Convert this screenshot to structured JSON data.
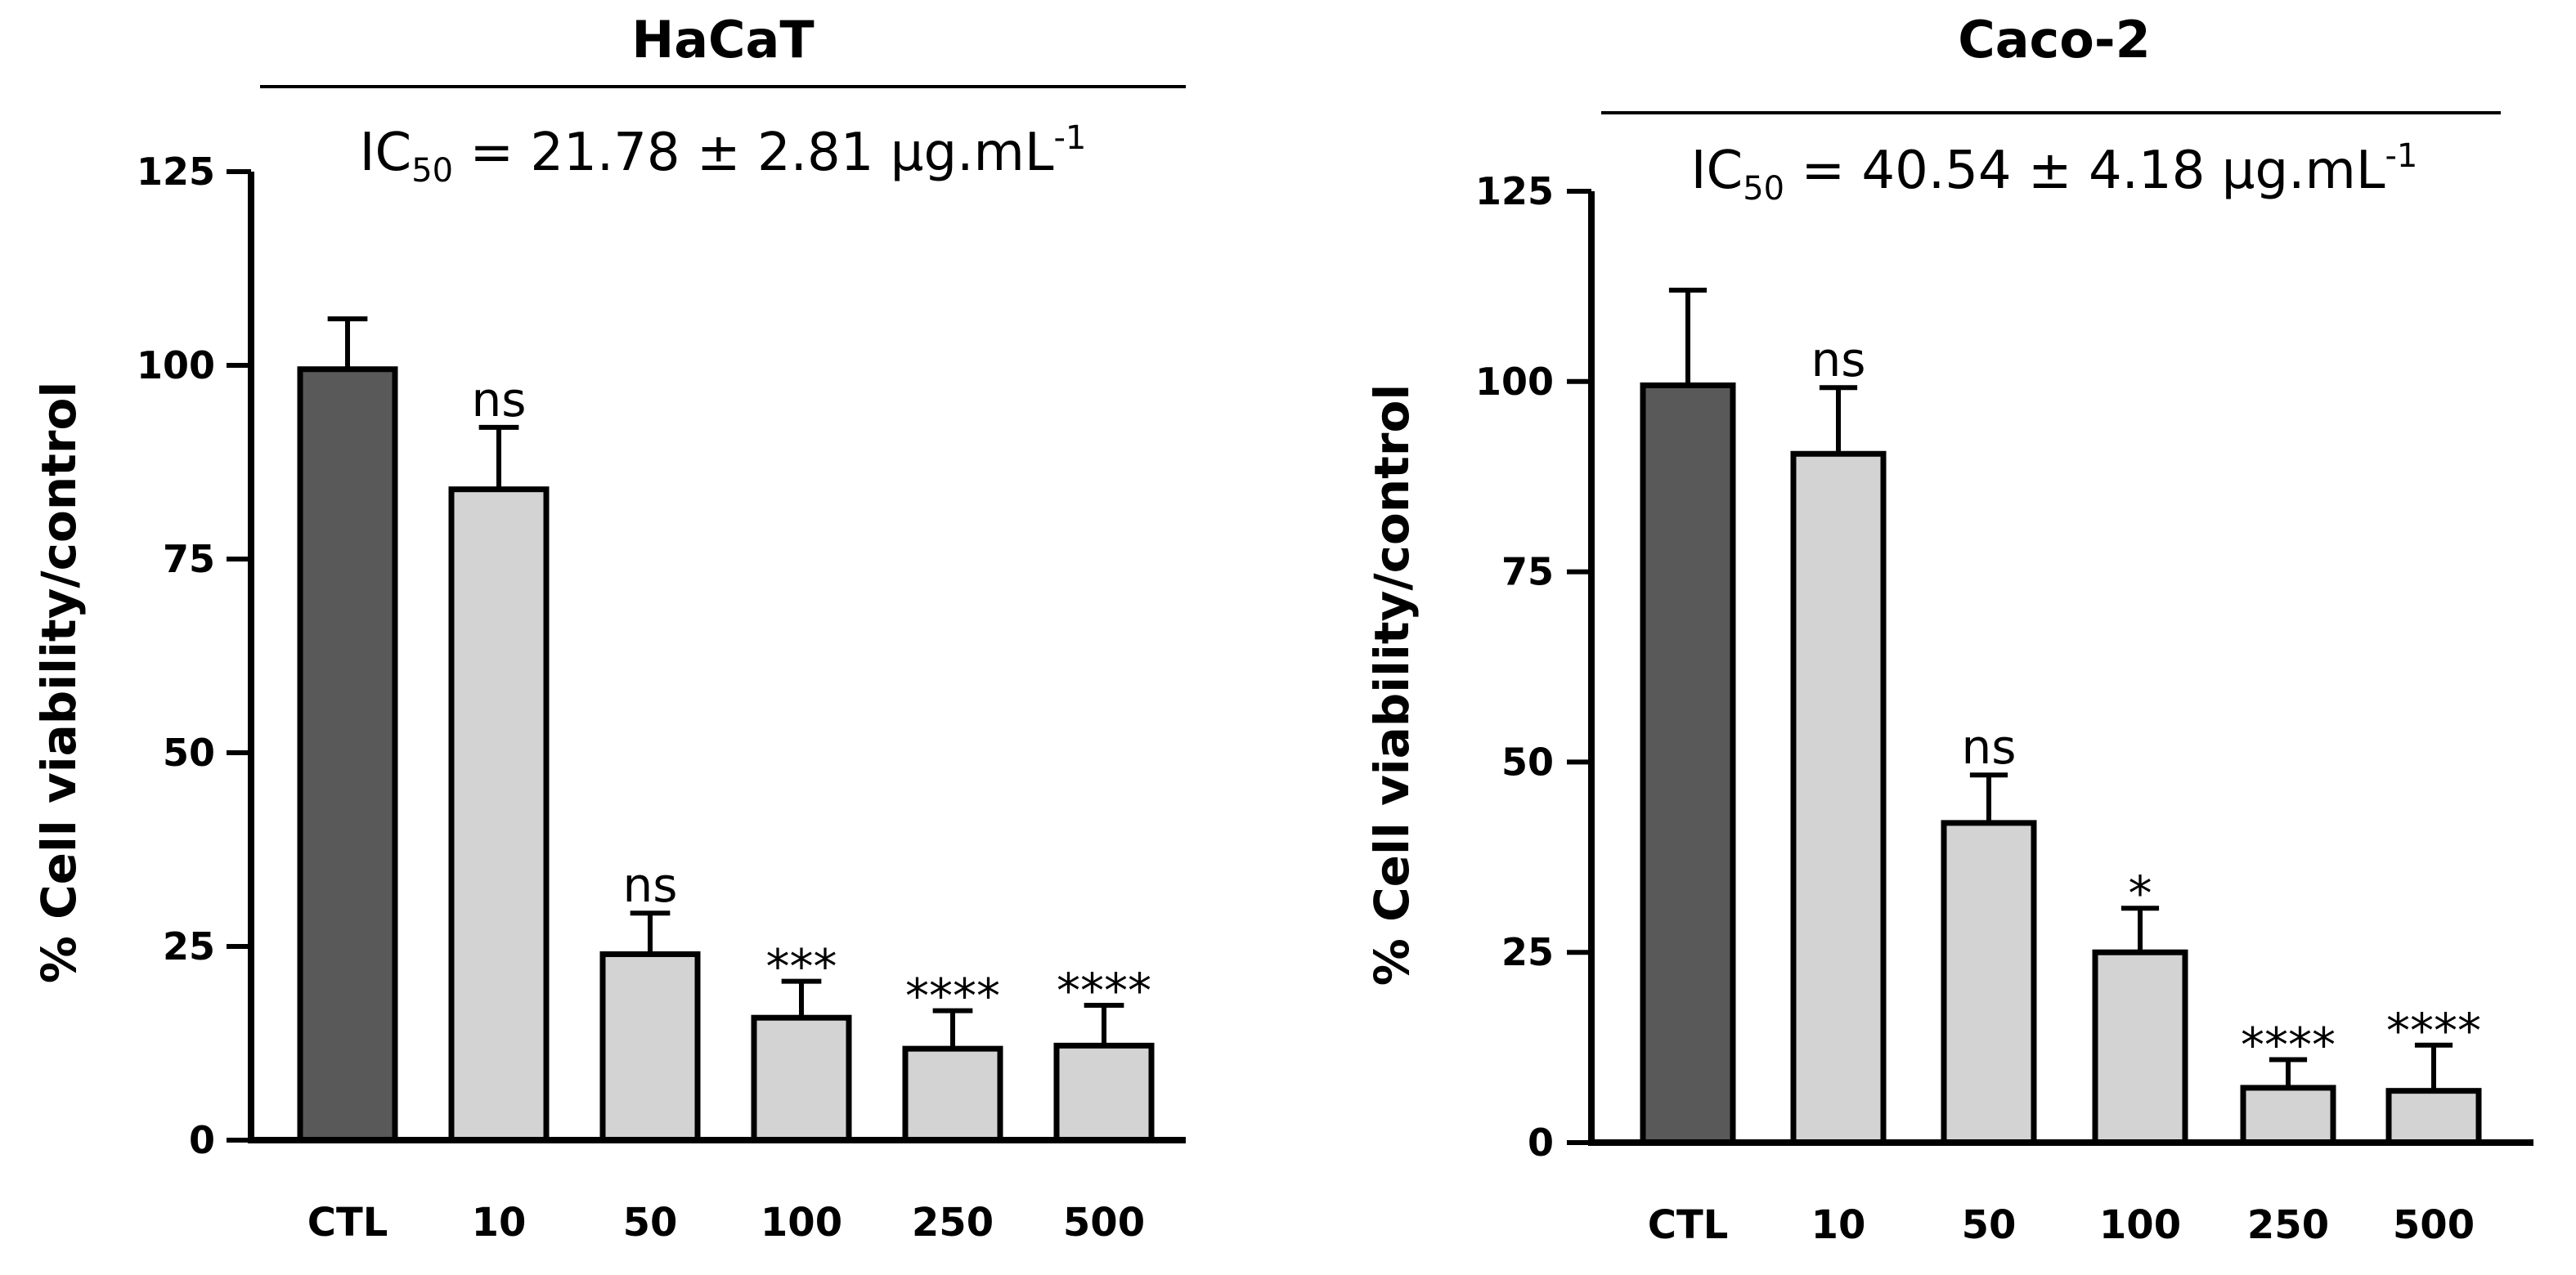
{
  "chart_data": [
    {
      "type": "bar",
      "title": "HaCaT",
      "ic50": {
        "prefix": "IC",
        "sub": "50",
        "value_text": " = 21.78 ± 2.81 µg.mL",
        "sup": "-1"
      },
      "ylabel": "% Cell viability/control",
      "xlabel": "",
      "ylim": [
        0,
        125
      ],
      "yticks": [
        0,
        25,
        50,
        75,
        100,
        125
      ],
      "categories": [
        "CTL",
        "10",
        "50",
        "100",
        "250",
        "500"
      ],
      "values": [
        99.5,
        84,
        24,
        15.8,
        11.8,
        12.2
      ],
      "errors": [
        6.5,
        8,
        5.3,
        4.7,
        4.9,
        5.2
      ],
      "significance": [
        "",
        "ns",
        "ns",
        "***",
        "****",
        "****"
      ],
      "colors": [
        "#595959",
        "#d3d3d3",
        "#d3d3d3",
        "#d3d3d3",
        "#d3d3d3",
        "#d3d3d3"
      ]
    },
    {
      "type": "bar",
      "title": "Caco-2",
      "ic50": {
        "prefix": "IC",
        "sub": "50",
        "value_text": " = 40.54 ± 4.18 µg.mL",
        "sup": "-1"
      },
      "ylabel": "% Cell viability/control",
      "xlabel": "",
      "ylim": [
        0,
        125
      ],
      "yticks": [
        0,
        25,
        50,
        75,
        100,
        125
      ],
      "categories": [
        "CTL",
        "10",
        "50",
        "100",
        "250",
        "500"
      ],
      "values": [
        99.5,
        90.5,
        42,
        25,
        7.2,
        6.8
      ],
      "errors": [
        12.5,
        8.7,
        6.3,
        5.8,
        3.7,
        6.0
      ],
      "significance": [
        "",
        "ns",
        "ns",
        "*",
        "****",
        "****"
      ],
      "colors": [
        "#595959",
        "#d3d3d3",
        "#d3d3d3",
        "#d3d3d3",
        "#d3d3d3",
        "#d3d3d3"
      ]
    }
  ]
}
